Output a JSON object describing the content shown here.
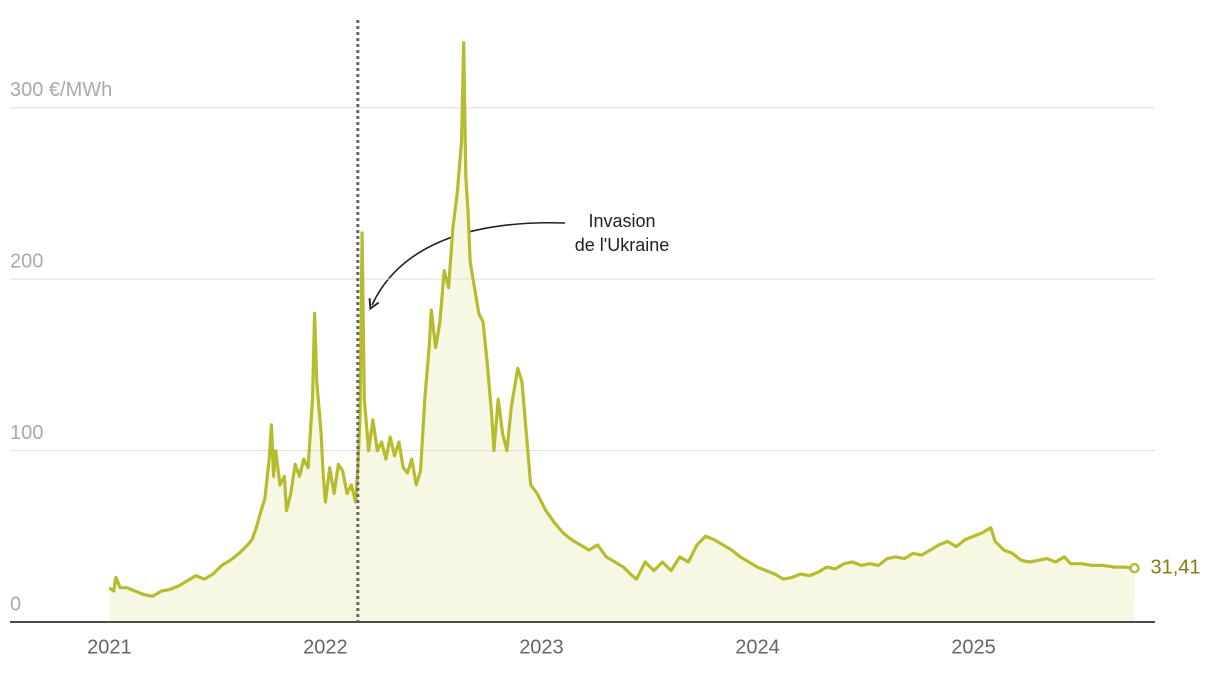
{
  "chart_data": {
    "type": "area",
    "annotation": [
      "Invasion",
      "de l'Ukraine"
    ],
    "event_x": 2022.15,
    "end_label": "31,41",
    "color": "#b7bc2f",
    "fill": "#f7f8e3",
    "label_color": "#7d8212",
    "xlim": [
      2020.54,
      2025.84
    ],
    "xticks": [
      2021,
      2022,
      2023,
      2024,
      2025
    ],
    "ylim": [
      0,
      350
    ],
    "yticks": [
      0,
      100,
      200,
      {
        "value": 300,
        "label": "300 €/MWh"
      }
    ],
    "grid": true,
    "x": [
      2021.0,
      2021.02,
      2021.03,
      2021.05,
      2021.08,
      2021.12,
      2021.16,
      2021.2,
      2021.24,
      2021.28,
      2021.32,
      2021.36,
      2021.4,
      2021.44,
      2021.48,
      2021.52,
      2021.56,
      2021.6,
      2021.64,
      2021.66,
      2021.68,
      2021.7,
      2021.72,
      2021.74,
      2021.75,
      2021.76,
      2021.77,
      2021.79,
      2021.81,
      2021.82,
      2021.84,
      2021.86,
      2021.88,
      2021.9,
      2021.92,
      2021.94,
      2021.95,
      2021.96,
      2021.98,
      2021.99,
      2022.0,
      2022.02,
      2022.04,
      2022.06,
      2022.08,
      2022.1,
      2022.12,
      2022.14,
      2022.15,
      2022.16,
      2022.17,
      2022.18,
      2022.19,
      2022.2,
      2022.22,
      2022.24,
      2022.26,
      2022.28,
      2022.3,
      2022.32,
      2022.34,
      2022.36,
      2022.38,
      2022.4,
      2022.42,
      2022.44,
      2022.46,
      2022.48,
      2022.49,
      2022.51,
      2022.53,
      2022.55,
      2022.57,
      2022.59,
      2022.61,
      2022.63,
      2022.64,
      2022.65,
      2022.66,
      2022.67,
      2022.69,
      2022.71,
      2022.73,
      2022.75,
      2022.77,
      2022.78,
      2022.8,
      2022.82,
      2022.84,
      2022.86,
      2022.88,
      2022.89,
      2022.91,
      2022.93,
      2022.95,
      2022.98,
      2023.02,
      2023.06,
      2023.1,
      2023.14,
      2023.18,
      2023.22,
      2023.26,
      2023.3,
      2023.34,
      2023.38,
      2023.42,
      2023.44,
      2023.48,
      2023.52,
      2023.56,
      2023.6,
      2023.64,
      2023.68,
      2023.72,
      2023.76,
      2023.8,
      2023.84,
      2023.88,
      2023.92,
      2023.96,
      2024.0,
      2024.04,
      2024.08,
      2024.12,
      2024.16,
      2024.2,
      2024.24,
      2024.28,
      2024.32,
      2024.36,
      2024.4,
      2024.44,
      2024.48,
      2024.52,
      2024.56,
      2024.6,
      2024.64,
      2024.68,
      2024.72,
      2024.76,
      2024.8,
      2024.84,
      2024.88,
      2024.92,
      2024.96,
      2025.0,
      2025.04,
      2025.08,
      2025.1,
      2025.14,
      2025.18,
      2025.22,
      2025.26,
      2025.3,
      2025.34,
      2025.38,
      2025.42,
      2025.45,
      2025.5,
      2025.55,
      2025.6,
      2025.65,
      2025.7,
      2025.745
    ],
    "values": [
      20,
      18,
      26,
      20,
      20,
      18,
      16,
      15,
      18,
      19,
      21,
      24,
      27,
      25,
      28,
      33,
      36,
      40,
      45,
      48,
      55,
      64,
      72,
      95,
      115,
      85,
      100,
      80,
      85,
      65,
      75,
      92,
      85,
      95,
      90,
      130,
      180,
      140,
      110,
      85,
      70,
      90,
      75,
      92,
      88,
      75,
      80,
      70,
      90,
      120,
      227,
      130,
      115,
      100,
      118,
      100,
      105,
      95,
      108,
      97,
      105,
      90,
      87,
      95,
      80,
      88,
      130,
      160,
      182,
      160,
      175,
      205,
      195,
      230,
      250,
      280,
      338,
      260,
      240,
      210,
      195,
      180,
      175,
      150,
      120,
      100,
      130,
      110,
      100,
      125,
      140,
      148,
      140,
      110,
      80,
      75,
      65,
      58,
      52,
      48,
      45,
      42,
      45,
      38,
      35,
      32,
      27,
      25,
      35,
      30,
      35,
      30,
      38,
      35,
      45,
      50,
      48,
      45,
      42,
      38,
      35,
      32,
      30,
      28,
      25,
      26,
      28,
      27,
      29,
      32,
      31,
      34,
      35,
      33,
      34,
      33,
      37,
      38,
      37,
      40,
      39,
      42,
      45,
      47,
      44,
      48,
      50,
      52,
      55,
      47,
      42,
      40,
      36,
      35,
      36,
      37,
      35,
      38,
      34,
      34,
      33,
      33,
      32,
      32,
      31.41
    ]
  }
}
